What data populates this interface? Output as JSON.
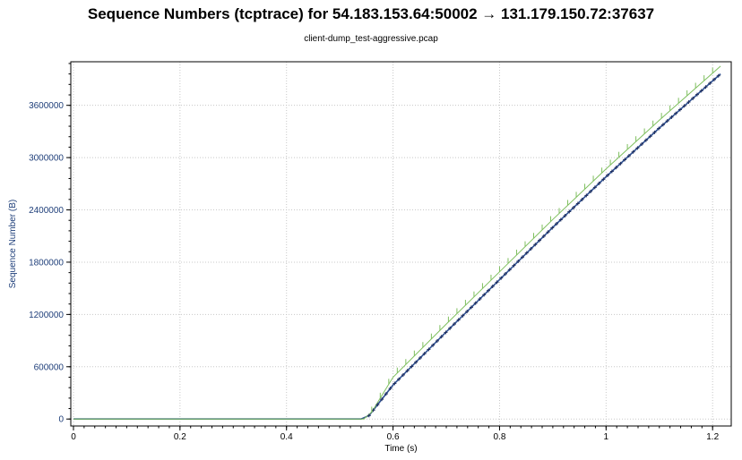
{
  "chart_data": {
    "type": "line",
    "title": "Sequence Numbers (tcptrace) for 54.183.153.64:50002 → 131.179.150.72:37637",
    "subtitle": "client-dump_test-aggressive.pcap",
    "xlabel": "Time (s)",
    "ylabel": "Sequence Number (B)",
    "xlim": [
      -0.005,
      1.235
    ],
    "ylim": [
      -80000,
      4100000
    ],
    "xticks": [
      0,
      0.2,
      0.4,
      0.6,
      0.8,
      1,
      1.2
    ],
    "xtick_labels": [
      "0",
      "0.2",
      "0.4",
      "0.6",
      "0.8",
      "1",
      "1.2"
    ],
    "yticks": [
      0,
      600000,
      1200000,
      1800000,
      2400000,
      3000000,
      3600000
    ],
    "ytick_labels": [
      "0",
      "600000",
      "1200000",
      "1800000",
      "2400000",
      "3000000",
      "3600000"
    ],
    "grid": true,
    "series": [
      {
        "color": "#2f4f8f",
        "x": [
          0,
          0.54,
          0.555,
          0.6,
          0.7,
          0.8,
          0.9,
          1.0,
          1.1,
          1.2,
          1.215
        ],
        "y": [
          0,
          0,
          40000,
          390000,
          1000000,
          1600000,
          2200000,
          2780000,
          3340000,
          3880000,
          3960000
        ]
      },
      {
        "color": "#7fbf5f",
        "x": [
          0,
          0.545,
          0.56,
          0.6,
          0.7,
          0.8,
          0.9,
          1.0,
          1.1,
          1.2,
          1.215
        ],
        "y": [
          0,
          0,
          80000,
          480000,
          1090000,
          1690000,
          2290000,
          2870000,
          3430000,
          3970000,
          4050000
        ]
      }
    ]
  }
}
